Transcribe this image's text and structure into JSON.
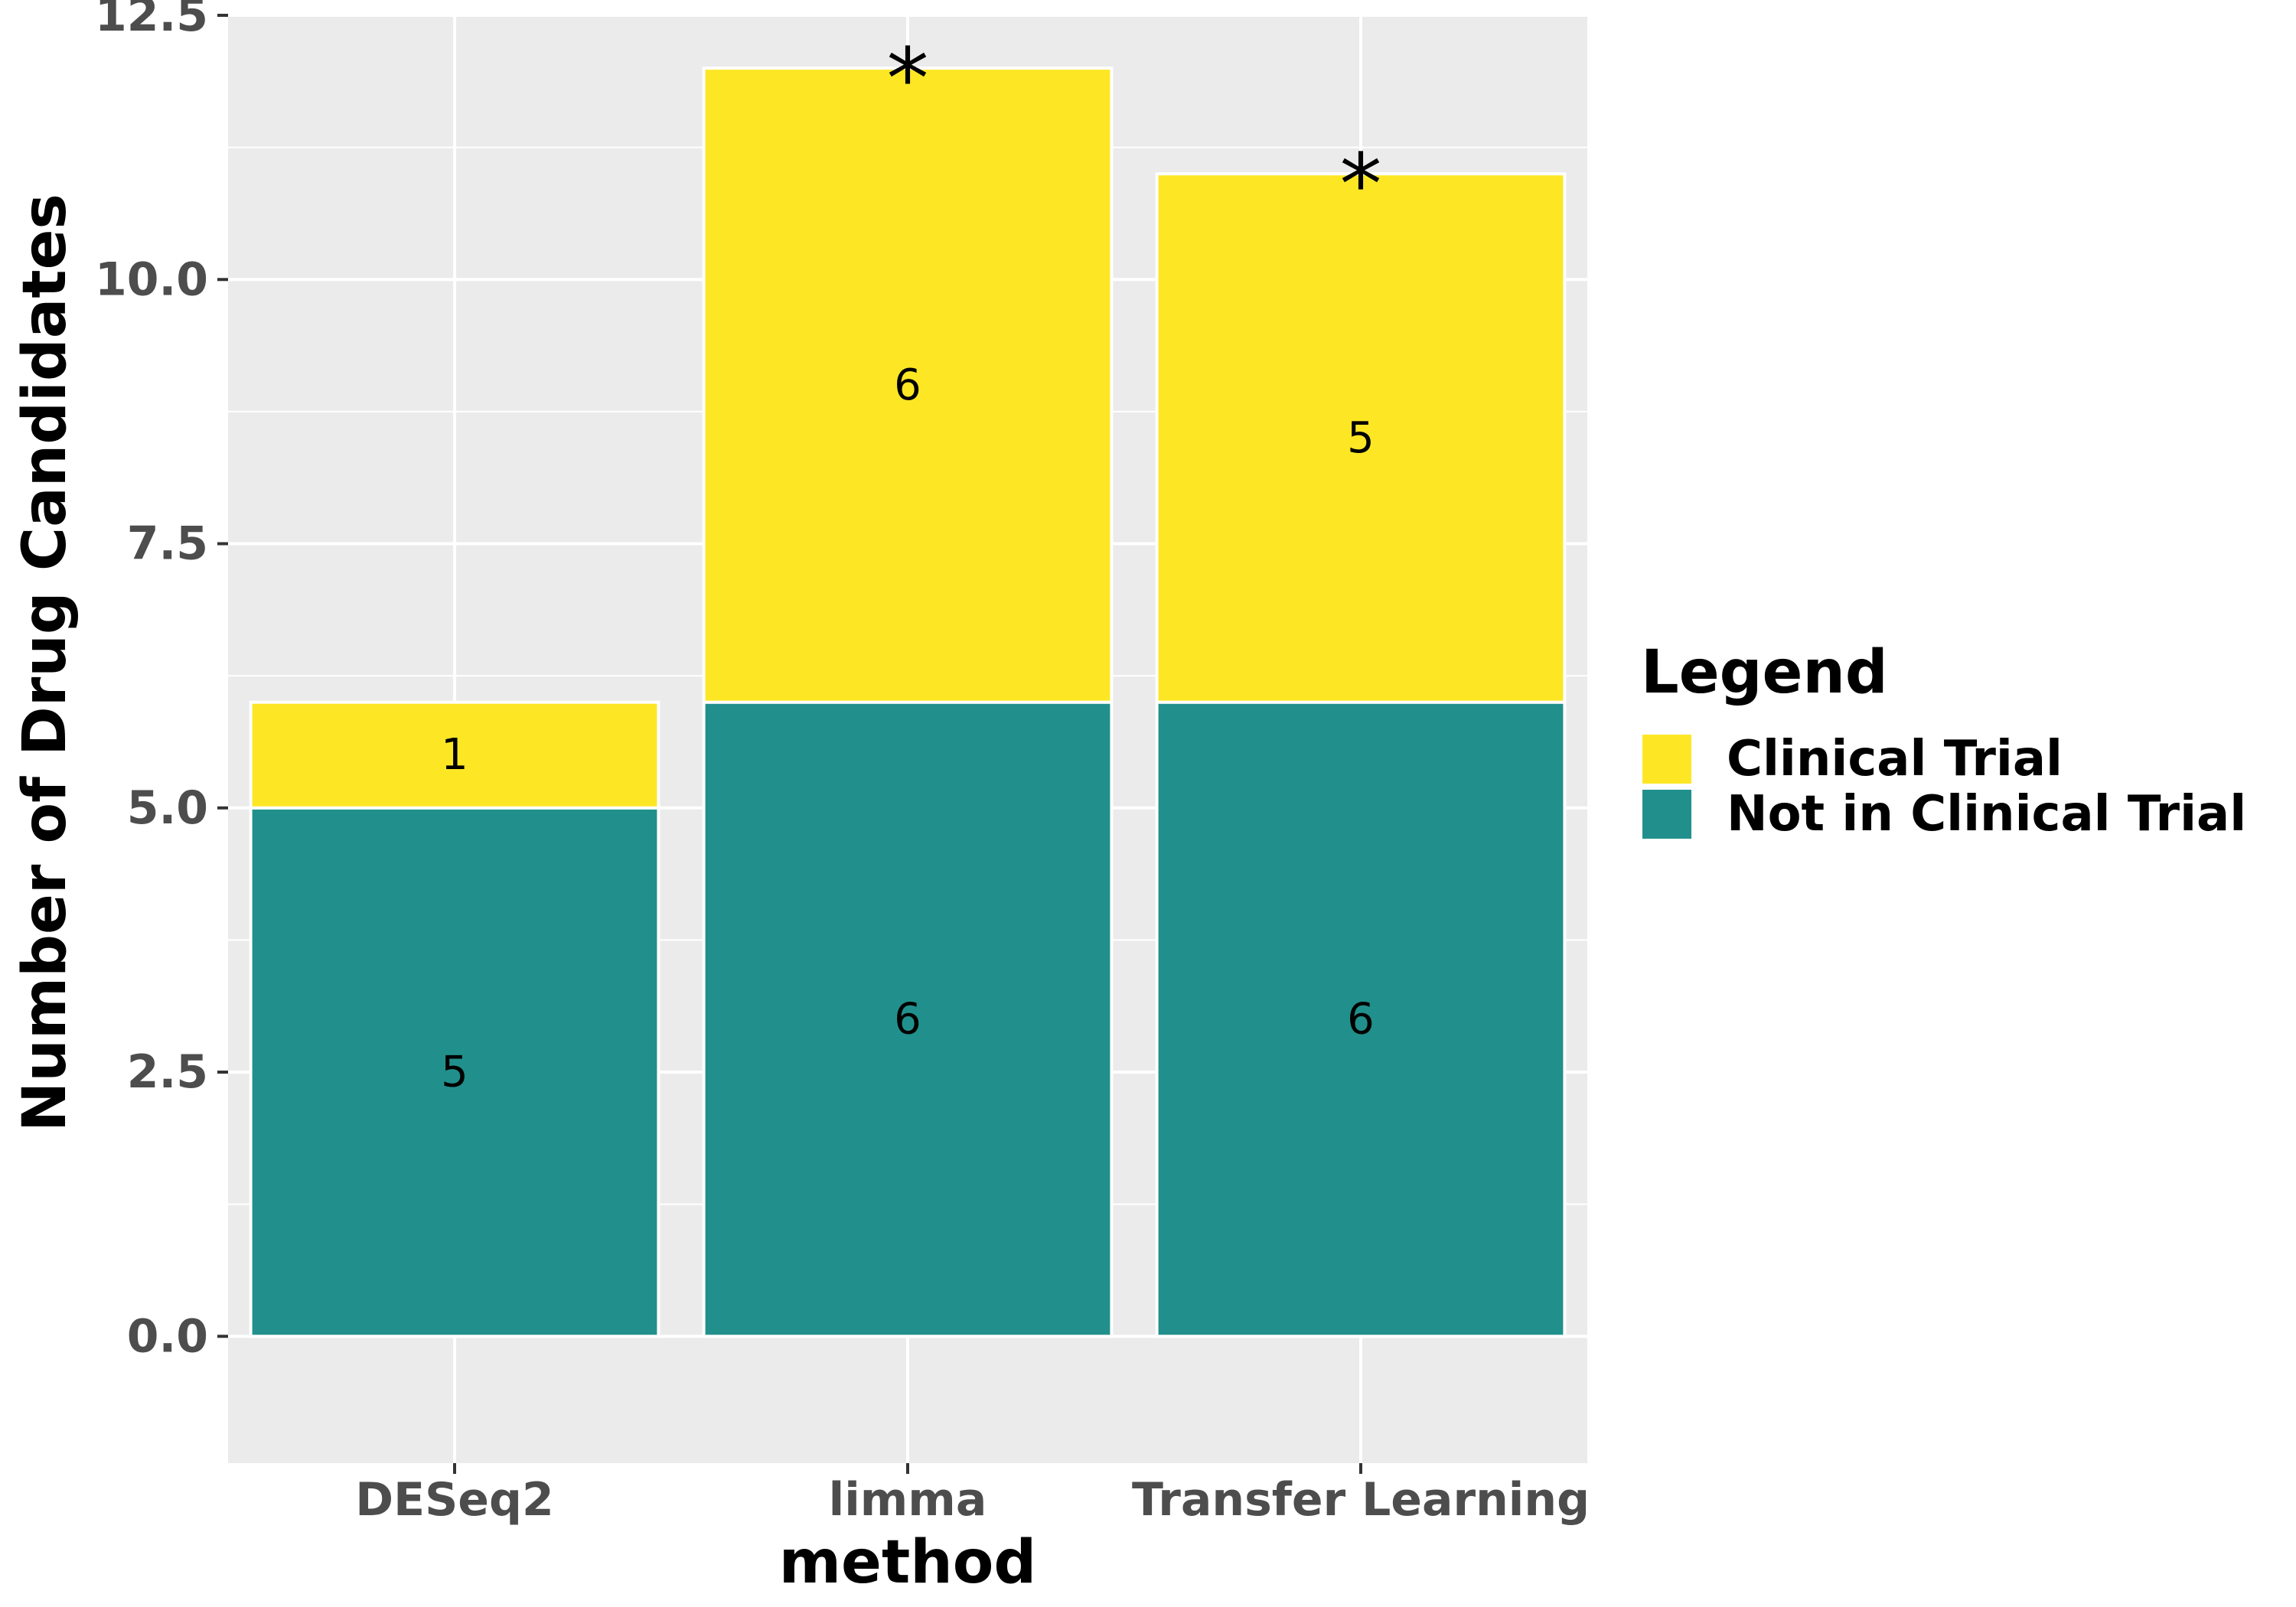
{
  "chart_data": {
    "type": "bar",
    "stacked": true,
    "categories": [
      "DESeq2",
      "limma",
      "Transfer Learning"
    ],
    "series": [
      {
        "name": "Not in Clinical Trial",
        "values": [
          5,
          6,
          6
        ],
        "color": "#21908C"
      },
      {
        "name": "Clinical Trial",
        "values": [
          1,
          6,
          5
        ],
        "color": "#FDE725"
      }
    ],
    "data_labels": [
      {
        "category": "DESeq2",
        "series": "Not in Clinical Trial",
        "text": "5"
      },
      {
        "category": "DESeq2",
        "series": "Clinical Trial",
        "text": "1"
      },
      {
        "category": "limma",
        "series": "Not in Clinical Trial",
        "text": "6"
      },
      {
        "category": "limma",
        "series": "Clinical Trial",
        "text": "6"
      },
      {
        "category": "Transfer Learning",
        "series": "Not in Clinical Trial",
        "text": "6"
      },
      {
        "category": "Transfer Learning",
        "series": "Clinical Trial",
        "text": "5"
      }
    ],
    "annotations": [
      {
        "category": "limma",
        "text": "*"
      },
      {
        "category": "Transfer Learning",
        "text": "*"
      }
    ],
    "xlabel": "method",
    "ylabel": "Number of Drug Candidates",
    "ylim": [
      -1.2,
      12.5
    ],
    "y_ticks": [
      0,
      2.5,
      5,
      7.5,
      10,
      12.5
    ],
    "y_tick_labels": [
      "0.0",
      "2.5",
      "5.0",
      "7.5",
      "10.0",
      "12.5"
    ],
    "legend": {
      "title": "Legend",
      "position": "right",
      "entries": [
        {
          "label": "Clinical Trial",
          "color": "#FDE725"
        },
        {
          "label": "Not in Clinical Trial",
          "color": "#21908C"
        }
      ]
    },
    "grid": true,
    "panel_background": "#EBEBEB",
    "grid_color": "#FFFFFF"
  }
}
